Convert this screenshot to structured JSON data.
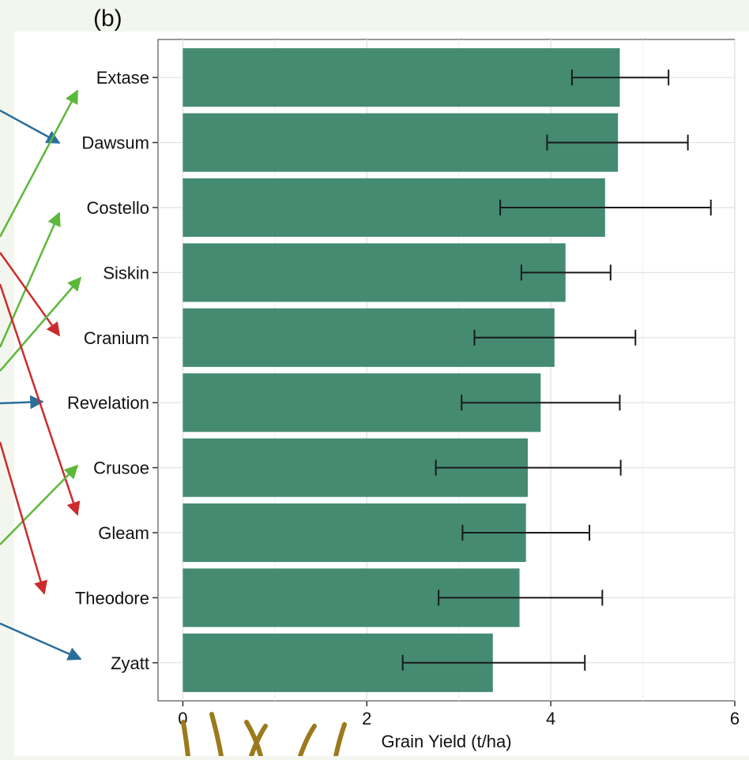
{
  "panel_label": "(b)",
  "colors": {
    "background": "#f3f6ee",
    "bar": "#448b72",
    "error_bar": "#1a1a1a",
    "arrow_blue": "#2a6e9a",
    "arrow_green": "#5cb83a",
    "arrow_red": "#cc2b2b",
    "decoration": "#9b7a1c"
  },
  "chart_data": {
    "type": "bar",
    "orientation": "horizontal",
    "categories": [
      "Extase",
      "Dawsum",
      "Costello",
      "Siskin",
      "Cranium",
      "Revelation",
      "Crusoe",
      "Gleam",
      "Theodore",
      "Zyatt"
    ],
    "values": [
      4.75,
      4.73,
      4.59,
      4.16,
      4.04,
      3.89,
      3.75,
      3.73,
      3.66,
      3.37
    ],
    "error_low": [
      4.23,
      3.96,
      3.45,
      3.68,
      3.17,
      3.03,
      2.75,
      3.04,
      2.78,
      2.39
    ],
    "error_high": [
      5.28,
      5.49,
      5.74,
      4.65,
      4.92,
      4.75,
      4.76,
      4.42,
      4.56,
      4.37
    ],
    "xlabel": "Grain Yield (t/ha)",
    "ylabel": "",
    "xlim": [
      -0.27,
      6.0
    ],
    "xticks": [
      "0",
      "2",
      "4",
      "6"
    ],
    "grid": true,
    "legend": "none"
  }
}
